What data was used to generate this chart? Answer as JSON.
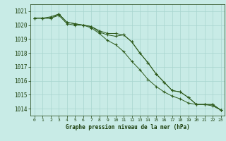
{
  "title": "Graphe pression niveau de la mer (hPa)",
  "bg_color": "#c8ebe6",
  "grid_color": "#a8d5cf",
  "line_color": "#2d5a1b",
  "text_color": "#1a3d0a",
  "xlim": [
    -0.5,
    23.5
  ],
  "ylim": [
    1013.5,
    1021.5
  ],
  "yticks": [
    1014,
    1015,
    1016,
    1017,
    1018,
    1019,
    1020,
    1021
  ],
  "xticks": [
    0,
    1,
    2,
    3,
    4,
    5,
    6,
    7,
    8,
    9,
    10,
    11,
    12,
    13,
    14,
    15,
    16,
    17,
    18,
    19,
    20,
    21,
    22,
    23
  ],
  "series": [
    [
      1020.5,
      1020.5,
      1020.6,
      1020.8,
      1020.2,
      1020.1,
      1020.0,
      1019.9,
      1019.6,
      1019.4,
      1019.4,
      1019.3,
      1018.8,
      1018.0,
      1017.3,
      1016.5,
      1015.9,
      1015.3,
      1015.2,
      1014.8,
      1014.3,
      1014.3,
      1014.3,
      1013.9
    ],
    [
      1020.5,
      1020.5,
      1020.5,
      1020.7,
      1020.1,
      1020.0,
      1020.0,
      1019.8,
      1019.4,
      1018.9,
      1018.6,
      1018.1,
      1017.4,
      1016.8,
      1016.1,
      1015.6,
      1015.2,
      1014.9,
      1014.7,
      1014.4,
      1014.3,
      1014.3,
      1014.2,
      1013.9
    ],
    [
      1020.5,
      1020.5,
      1020.5,
      1020.8,
      1020.2,
      1020.1,
      1020.0,
      1019.9,
      1019.5,
      1019.3,
      1019.2,
      1019.3,
      1018.8,
      1018.0,
      1017.3,
      1016.5,
      1015.9,
      1015.3,
      1015.2,
      1014.8,
      1014.3,
      1014.3,
      1014.3,
      1013.9
    ]
  ]
}
